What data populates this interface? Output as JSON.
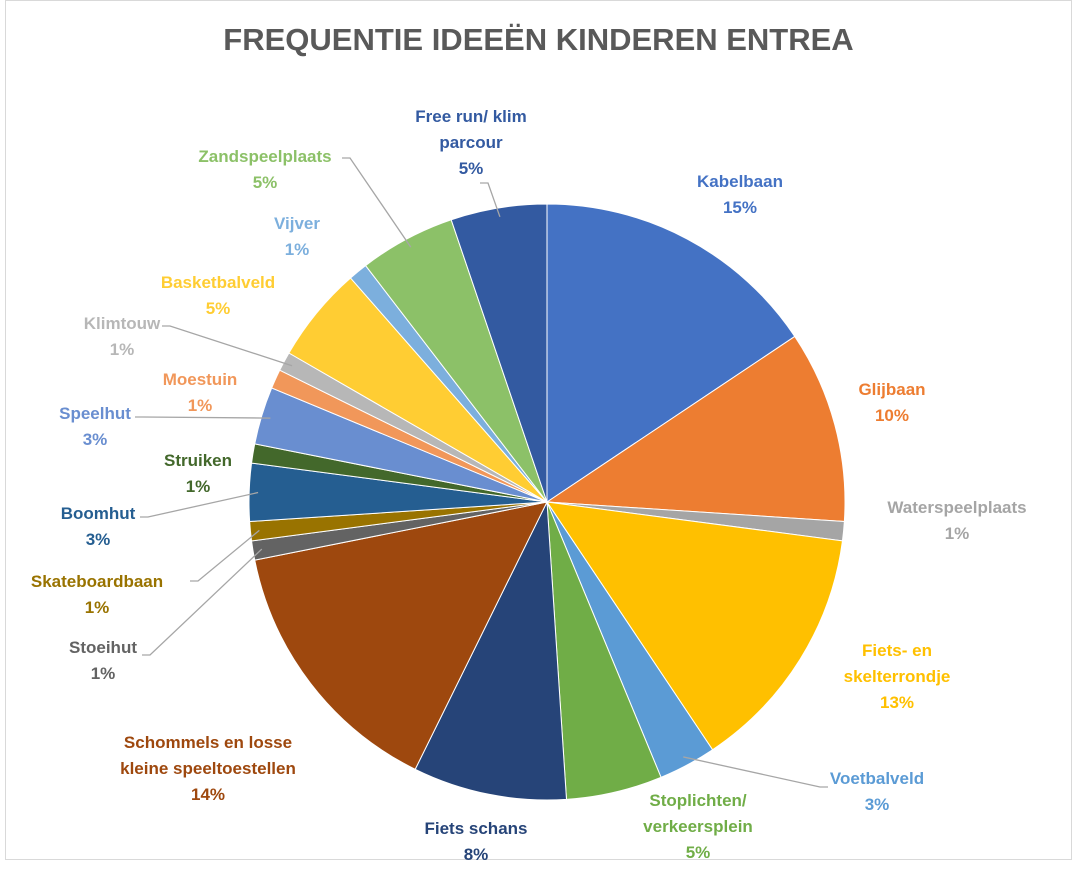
{
  "chart_data": {
    "type": "pie",
    "title": "FREQUENTIE IDEEËN KINDEREN ENTREA",
    "categories": [
      "Kabelbaan",
      "Glijbaan",
      "Waterspeelplaats",
      "Fiets- en skelterrondje",
      "Voetbalveld",
      "Stoplichten/ verkeersplein",
      "Fiets schans",
      "Schommels en losse kleine speeltoestellen",
      "Stoeihut",
      "Skateboardbaan",
      "Boomhut",
      "Struiken",
      "Speelhut",
      "Moestuin",
      "Klimtouw",
      "Basketbalveld",
      "Vijver",
      "Zandspeelplaats",
      "Free run/ klim parcour"
    ],
    "values": [
      15,
      10,
      1,
      13,
      3,
      5,
      8,
      14,
      1,
      1,
      3,
      1,
      3,
      1,
      1,
      5,
      1,
      5,
      5
    ],
    "value_labels": [
      "15%",
      "10%",
      "1%",
      "13%",
      "3%",
      "5%",
      "8%",
      "14%",
      "1%",
      "1%",
      "3%",
      "1%",
      "3%",
      "1%",
      "1%",
      "5%",
      "1%",
      "5%",
      "5%"
    ],
    "colors": [
      "#4472c4",
      "#ed7d31",
      "#a5a5a5",
      "#ffc000",
      "#5b9bd5",
      "#70ad47",
      "#264478",
      "#9e480e",
      "#636363",
      "#997300",
      "#255e91",
      "#43682b",
      "#698ed0",
      "#f1975a",
      "#b7b7b7",
      "#ffcd33",
      "#7cafdd",
      "#8cc168",
      "#335aa1"
    ]
  }
}
